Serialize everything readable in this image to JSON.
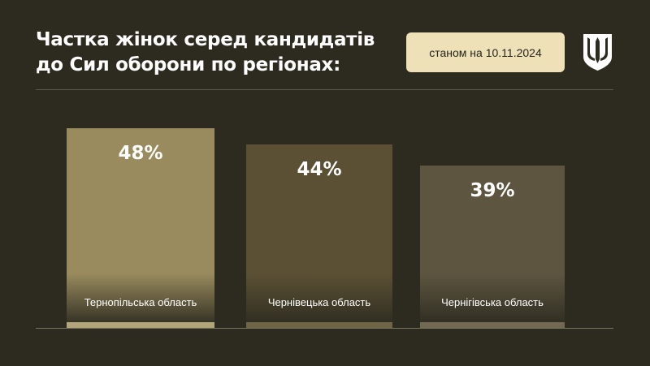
{
  "header": {
    "title_line1": "Частка жінок серед кандидатів",
    "title_line2": "до Сил оборони по регіонах:",
    "date_label": "станом на 10.11.2024"
  },
  "emblem": {
    "icon": "trident-shield-icon",
    "color": "#ffffff"
  },
  "colors": {
    "background": "#2d2b20",
    "badge": "#eee1b8"
  },
  "chart_data": {
    "type": "bar",
    "title": "Частка жінок серед кандидатів до Сил оборони по регіонах:",
    "categories": [
      "Тернопільська область",
      "Чернівецька область",
      "Чернігівська область"
    ],
    "values": [
      48,
      44,
      39
    ],
    "value_labels": [
      "48%",
      "44%",
      "39%"
    ],
    "unit": "%",
    "colors": [
      "#998b5e",
      "#5b5034",
      "#5d5540"
    ],
    "foot_colors": [
      "#b3a57a",
      "#6f6446",
      "#726955"
    ],
    "grid": false,
    "legend": "none"
  }
}
